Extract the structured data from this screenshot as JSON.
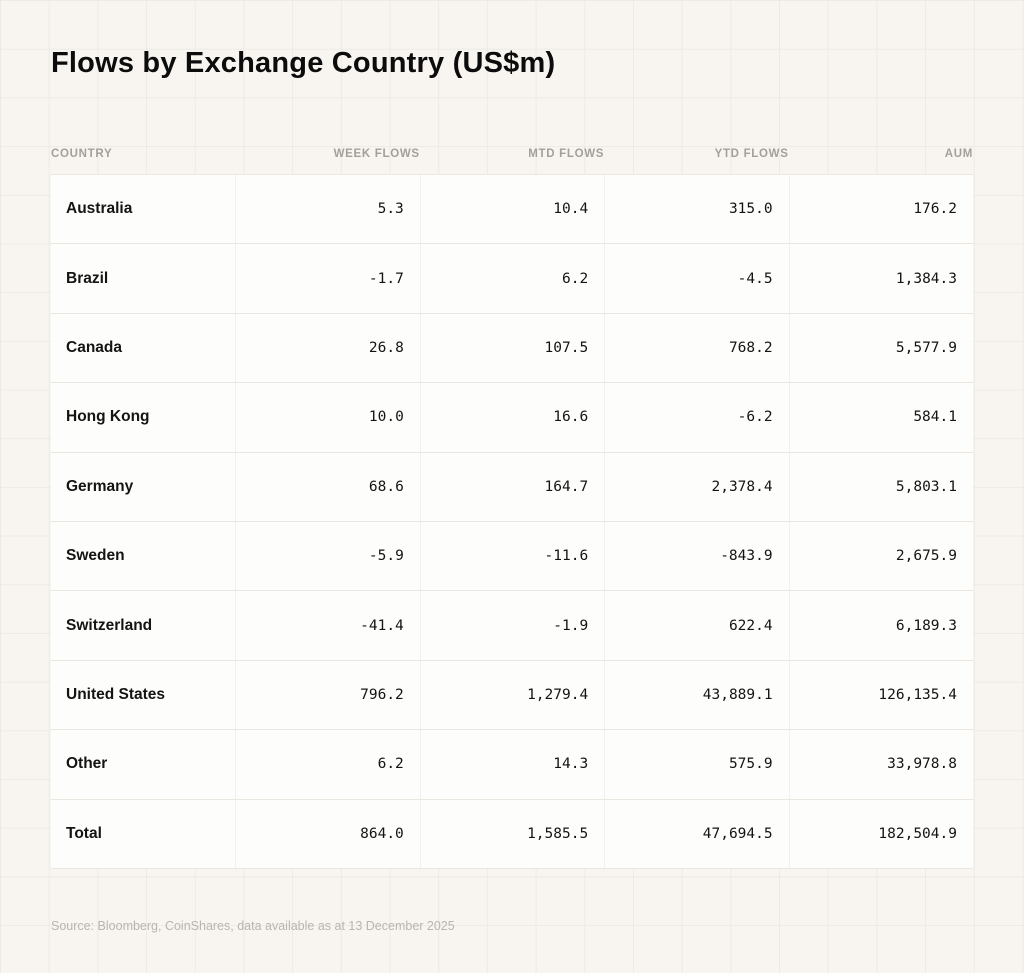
{
  "title": "Flows by Exchange Country (US$m)",
  "source_note": "Source: Bloomberg, CoinShares, data available as at 13 December 2025",
  "colors": {
    "page_background": "#f8f5f1",
    "grid_line": "#edeae4",
    "row_background": "#fdfdfb",
    "row_border": "#eae7e1",
    "header_text": "#a3a09a",
    "body_text": "#141414",
    "source_text": "#b8b5ae"
  },
  "chart_data": {
    "type": "table",
    "title": "Flows by Exchange Country (US$m)",
    "columns": [
      "Country",
      "Week flows",
      "MTD flows",
      "YTD flows",
      "AUM"
    ],
    "rows": [
      {
        "label": "Australia",
        "values": [
          "5.3",
          "10.4",
          "315.0",
          "176.2"
        ]
      },
      {
        "label": "Brazil",
        "values": [
          "-1.7",
          "6.2",
          "-4.5",
          "1,384.3"
        ]
      },
      {
        "label": "Canada",
        "values": [
          "26.8",
          "107.5",
          "768.2",
          "5,577.9"
        ]
      },
      {
        "label": "Hong Kong",
        "values": [
          "10.0",
          "16.6",
          "-6.2",
          "584.1"
        ]
      },
      {
        "label": "Germany",
        "values": [
          "68.6",
          "164.7",
          "2,378.4",
          "5,803.1"
        ]
      },
      {
        "label": "Sweden",
        "values": [
          "-5.9",
          "-11.6",
          "-843.9",
          "2,675.9"
        ]
      },
      {
        "label": "Switzerland",
        "values": [
          "-41.4",
          "-1.9",
          "622.4",
          "6,189.3"
        ]
      },
      {
        "label": "United States",
        "values": [
          "796.2",
          "1,279.4",
          "43,889.1",
          "126,135.4"
        ]
      },
      {
        "label": "Other",
        "values": [
          "6.2",
          "14.3",
          "575.9",
          "33,978.8"
        ]
      },
      {
        "label": "Total",
        "values": [
          "864.0",
          "1,585.5",
          "47,694.5",
          "182,504.9"
        ]
      }
    ]
  }
}
